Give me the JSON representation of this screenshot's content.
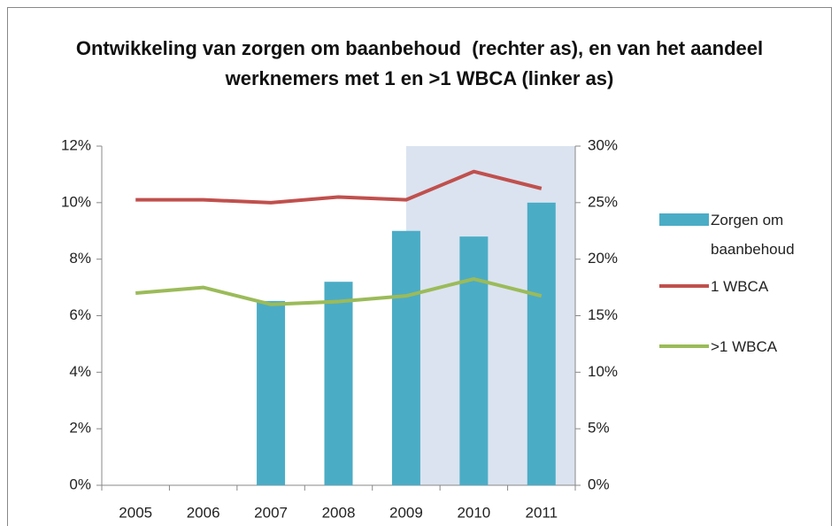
{
  "chart_data": {
    "type": "bar",
    "title": "Ontwikkeling van zorgen om baanbehoud  (rechter as), en van het aandeel werknemers met 1 en >1 WBCA (linker as)",
    "categories": [
      "2005",
      "2006",
      "2007",
      "2008",
      "2009",
      "2010",
      "2011"
    ],
    "series": [
      {
        "name": "Zorgen om baanbehoud",
        "type": "bar",
        "axis": "y2",
        "color": "#4bacc6",
        "values": [
          null,
          null,
          16.3,
          18.0,
          22.5,
          22.0,
          25.0
        ]
      },
      {
        "name": "1 WBCA",
        "type": "line",
        "color": "#c0504d",
        "values": [
          10.1,
          10.1,
          10.0,
          10.2,
          10.1,
          11.1,
          10.5
        ]
      },
      {
        "name": ">1 WBCA",
        "type": "line",
        "color": "#9bbb59",
        "values": [
          6.8,
          7.0,
          6.4,
          6.5,
          6.7,
          7.3,
          6.7
        ]
      }
    ],
    "ylim": [
      0,
      12
    ],
    "yticks": [
      {
        "value": 0,
        "label": "0%"
      },
      {
        "value": 2,
        "label": "2%"
      },
      {
        "value": 4,
        "label": "4%"
      },
      {
        "value": 6,
        "label": "6%"
      },
      {
        "value": 8,
        "label": "8%"
      },
      {
        "value": 10,
        "label": "10%"
      },
      {
        "value": 12,
        "label": "12%"
      }
    ],
    "y2lim": [
      0,
      30
    ],
    "y2ticks": [
      {
        "value": 0,
        "label": "0%"
      },
      {
        "value": 5,
        "label": "5%"
      },
      {
        "value": 10,
        "label": "10%"
      },
      {
        "value": 15,
        "label": "15%"
      },
      {
        "value": 20,
        "label": "20%"
      },
      {
        "value": 25,
        "label": "25%"
      },
      {
        "value": 30,
        "label": "30%"
      }
    ],
    "grid": false,
    "legend": "right"
  }
}
